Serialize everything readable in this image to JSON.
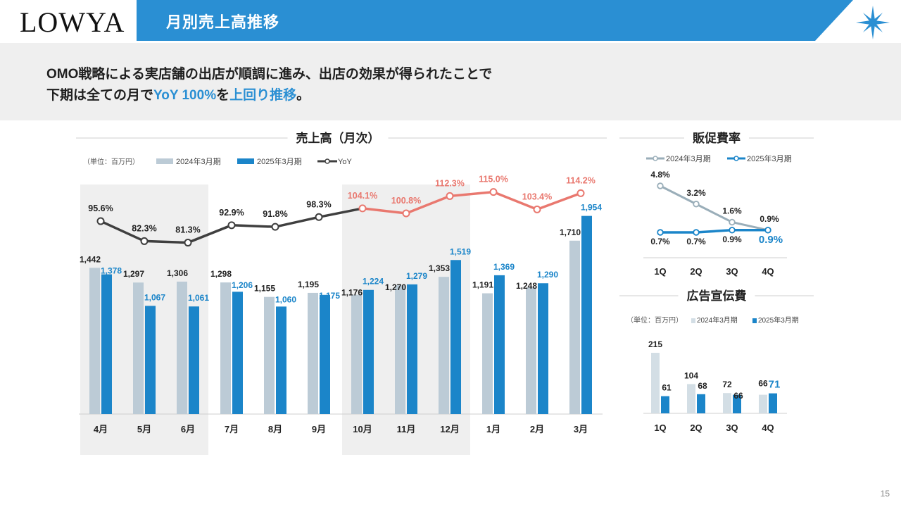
{
  "header": {
    "logo": "LOWYA",
    "title": "月別売上高推移",
    "brand_color": "#2a8fd3"
  },
  "lead": {
    "line1": "OMO戦略による実店舗の出店が順調に進み、出店の効果が得られたことで",
    "line2_prefix": "下期は全ての月で",
    "line2_hl1": "YoY 100%",
    "line2_mid": "を",
    "line2_hl2": "上回り推移",
    "line2_suffix": "。"
  },
  "page_number": "15",
  "colors": {
    "prev": "#bccbd6",
    "curr": "#1b85c9",
    "yoy_low": "#3f3f3f",
    "yoy_high": "#e9786f",
    "shade": "#efefef",
    "prev_ad": "#d3dee5"
  },
  "chart_data": [
    {
      "type": "bar",
      "title": "売上高（月次）",
      "unit_label": "（単位：百万円）",
      "categories": [
        "4月",
        "5月",
        "6月",
        "7月",
        "8月",
        "9月",
        "10月",
        "11月",
        "12月",
        "1月",
        "2月",
        "3月"
      ],
      "series": [
        {
          "name": "2024年3月期",
          "values": [
            1442,
            1297,
            1306,
            1298,
            1155,
            1195,
            1176,
            1270,
            1353,
            1191,
            1248,
            1710
          ]
        },
        {
          "name": "2025年3月期",
          "values": [
            1378,
            1067,
            1061,
            1206,
            1060,
            1175,
            1224,
            1279,
            1519,
            1369,
            1290,
            1954
          ]
        }
      ],
      "value_labels": {
        "2024年3月期": [
          "1,442",
          "1,297",
          "1,306",
          "1,298",
          "1,155",
          "1,195",
          "1,176",
          "1,270",
          "1,353",
          "1,191",
          "1,248",
          "1,710"
        ],
        "2025年3月期": [
          "1,378",
          "1,067",
          "1,061",
          "1,206",
          "1,060",
          "1,175",
          "1,224",
          "1,279",
          "1,519",
          "1,369",
          "1,290",
          "1,954"
        ]
      },
      "ylim": [
        0,
        2000
      ],
      "shaded_categories": [
        "4月",
        "5月",
        "6月",
        "10月",
        "11月",
        "12月"
      ],
      "grid": false,
      "legend": "top-left"
    },
    {
      "type": "line",
      "name": "YoY",
      "categories": [
        "4月",
        "5月",
        "6月",
        "7月",
        "8月",
        "9月",
        "10月",
        "11月",
        "12月",
        "1月",
        "2月",
        "3月"
      ],
      "values": [
        95.6,
        82.3,
        81.3,
        92.9,
        91.8,
        98.3,
        104.1,
        100.8,
        112.3,
        115.0,
        103.4,
        114.2
      ],
      "labels": [
        "95.6%",
        "82.3%",
        "81.3%",
        "92.9%",
        "91.8%",
        "98.3%",
        "104.1%",
        "100.8%",
        "112.3%",
        "115.0%",
        "103.4%",
        "114.2%"
      ],
      "ylim": [
        60,
        120
      ]
    },
    {
      "type": "line",
      "title": "販促費率",
      "categories": [
        "1Q",
        "2Q",
        "3Q",
        "4Q"
      ],
      "series": [
        {
          "name": "2024年3月期",
          "values": [
            4.8,
            3.2,
            1.6,
            0.9
          ],
          "labels": [
            "4.8%",
            "3.2%",
            "1.6%",
            "0.9%"
          ]
        },
        {
          "name": "2025年3月期",
          "values": [
            0.7,
            0.7,
            0.9,
            0.9
          ],
          "labels": [
            "0.7%",
            "0.7%",
            "0.9%",
            "0.9%"
          ]
        }
      ],
      "legend": "top"
    },
    {
      "type": "bar",
      "title": "広告宣伝費",
      "unit_label": "（単位：百万円）",
      "categories": [
        "1Q",
        "2Q",
        "3Q",
        "4Q"
      ],
      "series": [
        {
          "name": "2024年3月期",
          "values": [
            215,
            104,
            72,
            66
          ]
        },
        {
          "name": "2025年3月期",
          "values": [
            61,
            68,
            66,
            71
          ]
        }
      ],
      "ylim": [
        0,
        215
      ],
      "legend": "top"
    }
  ]
}
